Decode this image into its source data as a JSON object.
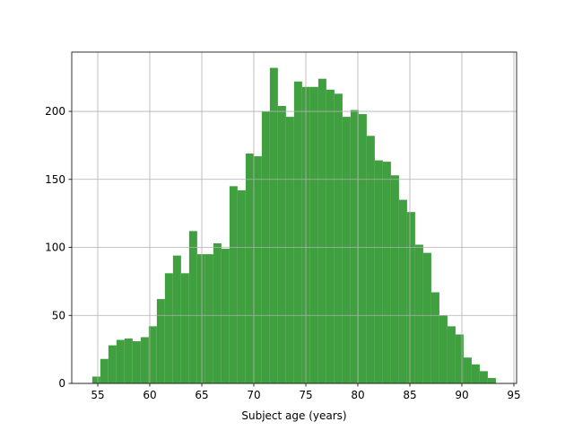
{
  "chart_data": {
    "type": "histogram",
    "xlabel": "Subject age (years)",
    "bins": [
      54.47,
      55.246,
      56.022,
      56.798,
      57.574,
      58.35,
      59.126,
      59.902,
      60.678,
      61.454,
      62.23,
      63.006,
      63.782,
      64.558,
      65.334,
      66.11,
      66.886,
      67.662,
      68.438,
      69.214,
      69.99,
      70.766,
      71.542,
      72.318,
      73.094,
      73.87,
      74.646,
      75.422,
      76.198,
      76.974,
      77.75,
      78.526,
      79.302,
      80.078,
      80.854,
      81.63,
      82.406,
      83.182,
      83.958,
      84.734,
      85.51,
      86.286,
      87.062,
      87.838,
      88.614,
      89.39,
      90.166,
      90.942,
      91.718,
      92.494,
      93.27
    ],
    "counts": [
      5,
      18,
      28,
      32,
      33,
      31,
      34,
      42,
      62,
      81,
      94,
      81,
      112,
      95,
      95,
      103,
      99,
      145,
      142,
      169,
      167,
      200,
      232,
      204,
      196,
      222,
      218,
      218,
      224,
      216,
      213,
      196,
      201,
      198,
      182,
      164,
      163,
      153,
      135,
      126,
      102,
      96,
      67,
      50,
      42,
      36,
      19,
      14,
      9,
      4
    ],
    "color": "#40a040",
    "xlim": [
      52.5,
      95.26
    ],
    "ylim": [
      0,
      243.6
    ],
    "xticks": [
      55,
      60,
      65,
      70,
      75,
      80,
      85,
      90,
      95
    ],
    "yticks": [
      0,
      50,
      100,
      150,
      200
    ],
    "grid": true
  }
}
